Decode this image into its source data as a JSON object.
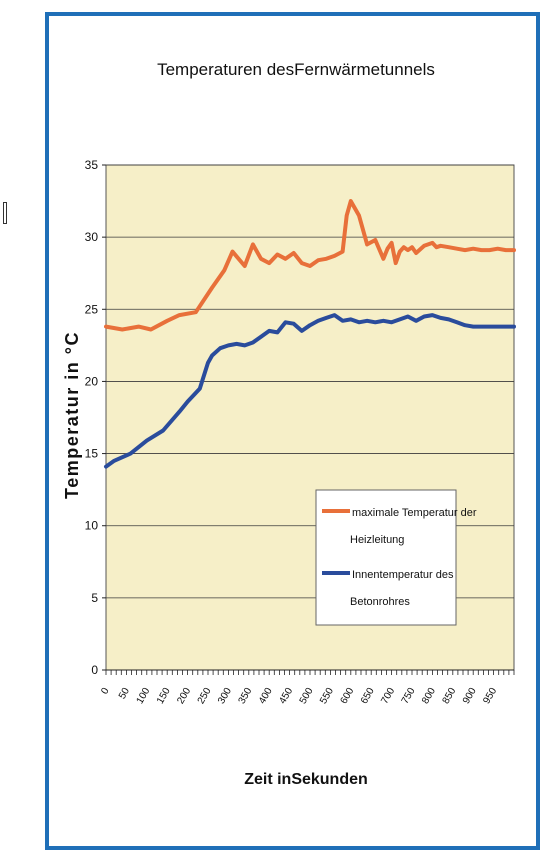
{
  "chart_data": {
    "type": "line",
    "title": "Temperaturen desFernwärmetunnels",
    "xlabel": "Zeit inSekunden",
    "ylabel": "Temperatur in °C",
    "ylim": [
      0,
      35
    ],
    "yticks": [
      "0",
      "5",
      "10",
      "15",
      "20",
      "25",
      "30",
      "35"
    ],
    "xlim": [
      0,
      1000
    ],
    "xticks": [
      "0",
      "50",
      "100",
      "150",
      "200",
      "250",
      "300",
      "350",
      "400",
      "450",
      "500",
      "550",
      "600",
      "650",
      "700",
      "750",
      "800",
      "850",
      "900",
      "950"
    ],
    "grid": true,
    "legend_position": "lower-right",
    "plot_background": "#f6efc8",
    "frame_color": "#1f6fb8",
    "series": [
      {
        "name": "maximale Temperatur der Heizleitung",
        "color": "#e8703a",
        "x": [
          0,
          40,
          80,
          110,
          150,
          180,
          220,
          260,
          290,
          310,
          340,
          360,
          380,
          400,
          420,
          440,
          460,
          480,
          500,
          520,
          540,
          560,
          580,
          590,
          600,
          620,
          640,
          660,
          680,
          690,
          700,
          710,
          720,
          730,
          740,
          750,
          760,
          780,
          800,
          810,
          820,
          840,
          860,
          880,
          900,
          920,
          940,
          960,
          980,
          1000
        ],
        "y": [
          23.8,
          23.6,
          23.8,
          23.6,
          24.2,
          24.6,
          24.8,
          26.5,
          27.7,
          29,
          28,
          29.5,
          28.5,
          28.2,
          28.8,
          28.5,
          28.9,
          28.2,
          28,
          28.4,
          28.5,
          28.7,
          29,
          31.5,
          32.5,
          31.5,
          29.5,
          29.8,
          28.5,
          29.2,
          29.6,
          28.2,
          29,
          29.3,
          29.1,
          29.3,
          28.9,
          29.4,
          29.6,
          29.3,
          29.4,
          29.3,
          29.2,
          29.1,
          29.2,
          29.1,
          29.1,
          29.2,
          29.1,
          29.1
        ],
        "label_lines": [
          "maximale Temperatur der",
          "Heizleitung"
        ]
      },
      {
        "name": "Innentemperatur des Betonrohres",
        "color": "#2a4c9c",
        "x": [
          0,
          20,
          60,
          100,
          140,
          180,
          200,
          230,
          250,
          260,
          280,
          300,
          320,
          340,
          360,
          380,
          400,
          420,
          440,
          460,
          480,
          500,
          520,
          540,
          560,
          580,
          600,
          620,
          640,
          660,
          680,
          700,
          720,
          740,
          760,
          780,
          800,
          820,
          840,
          860,
          880,
          900,
          920,
          940,
          960,
          980,
          1000
        ],
        "y": [
          14.1,
          14.5,
          15,
          15.9,
          16.6,
          17.9,
          18.6,
          19.5,
          21.3,
          21.8,
          22.3,
          22.5,
          22.6,
          22.5,
          22.7,
          23.1,
          23.5,
          23.4,
          24.1,
          24,
          23.5,
          23.9,
          24.2,
          24.4,
          24.6,
          24.2,
          24.3,
          24.1,
          24.2,
          24.1,
          24.2,
          24.1,
          24.3,
          24.5,
          24.2,
          24.5,
          24.6,
          24.4,
          24.3,
          24.1,
          23.9,
          23.8,
          23.8,
          23.8,
          23.8,
          23.8,
          23.8
        ],
        "label_lines": [
          "Innentemperatur des",
          "Betonrohres"
        ]
      }
    ]
  }
}
